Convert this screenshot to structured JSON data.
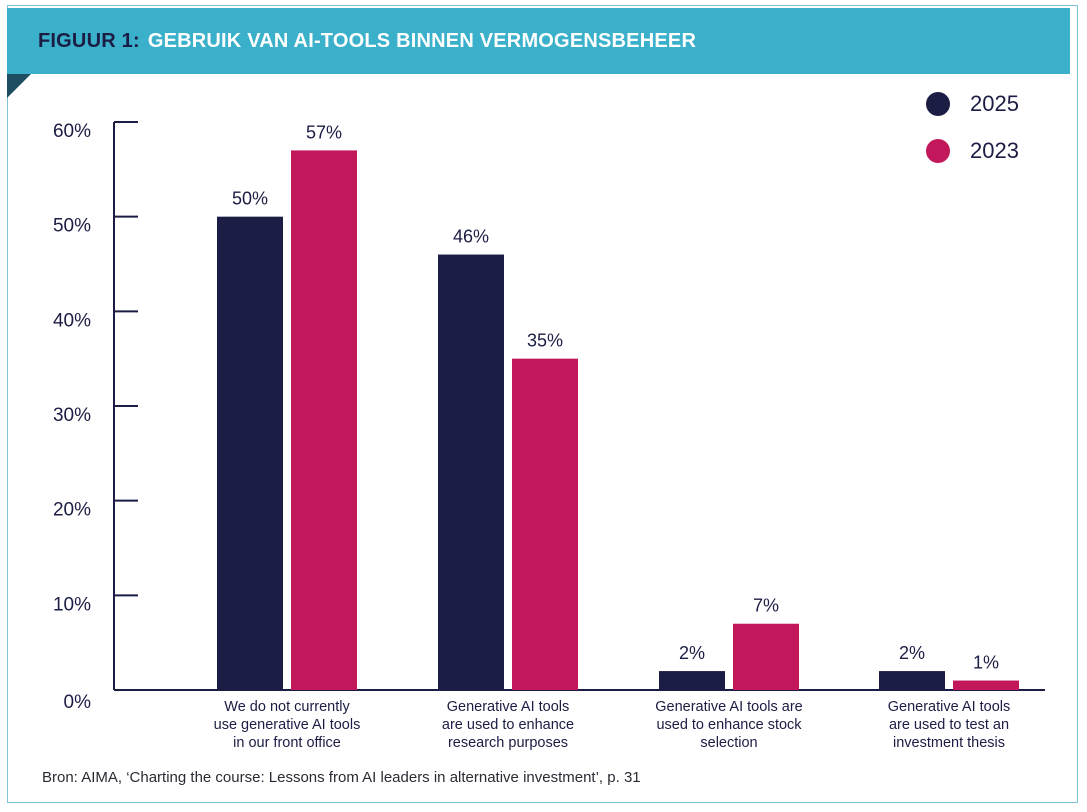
{
  "header": {
    "figure_label": "FIGUUR 1:",
    "title": "GEBRUIK VAN AI-TOOLS BINNEN VERMOGENSBEHEER"
  },
  "colors": {
    "header_bg": "#3ab0cb",
    "series_2025": "#1b1d44",
    "series_2023": "#c2185b"
  },
  "legend": [
    {
      "label": "2025",
      "color": "#1b1d44"
    },
    {
      "label": "2023",
      "color": "#c2185b"
    }
  ],
  "chart_data": {
    "type": "bar",
    "title": "GEBRUIK VAN AI-TOOLS BINNEN VERMOGENSBEHEER",
    "xlabel": "",
    "ylabel": "",
    "ylim": [
      0,
      60
    ],
    "yticks": [
      0,
      10,
      20,
      30,
      40,
      50,
      60
    ],
    "ytick_labels": [
      "0%",
      "10%",
      "20%",
      "30%",
      "40%",
      "50%",
      "60%"
    ],
    "categories": [
      [
        "We do not currently",
        "use generative AI tools",
        "in our front office"
      ],
      [
        "Generative AI tools",
        "are used to enhance",
        "research purposes"
      ],
      [
        "Generative AI tools are",
        "used to enhance stock",
        "selection"
      ],
      [
        "Generative AI tools",
        "are used to test an",
        "investment thesis"
      ]
    ],
    "series": [
      {
        "name": "2025",
        "color": "#1b1d44",
        "values": [
          50,
          46,
          2,
          2
        ],
        "labels": [
          "50%",
          "46%",
          "2%",
          "2%"
        ]
      },
      {
        "name": "2023",
        "color": "#c2185b",
        "values": [
          57,
          35,
          7,
          1
        ],
        "labels": [
          "57%",
          "35%",
          "7%",
          "1%"
        ]
      }
    ],
    "grid": false,
    "legend_position": "top-right"
  },
  "source": "Bron: AIMA, ‘Charting the course: Lessons from AI leaders in alternative investment’, p. 31"
}
